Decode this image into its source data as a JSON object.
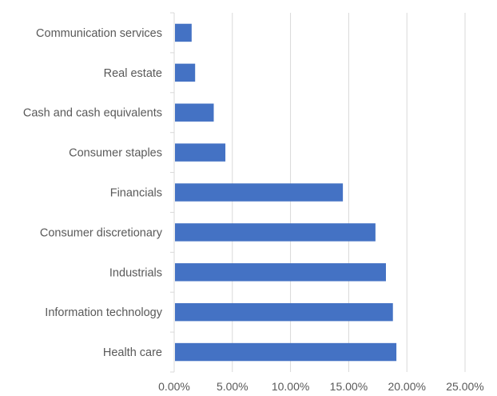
{
  "chart_data": {
    "type": "bar",
    "orientation": "horizontal",
    "categories": [
      "Communication services",
      "Real estate",
      "Cash and cash equivalents",
      "Consumer staples",
      "Financials",
      "Consumer discretionary",
      "Industrials",
      "Information technology",
      "Health care"
    ],
    "values": [
      1.5,
      1.8,
      3.4,
      4.4,
      14.5,
      17.3,
      18.2,
      18.8,
      19.1
    ],
    "xlim": [
      0,
      25
    ],
    "xticks": [
      "0.00%",
      "5.00%",
      "10.00%",
      "15.00%",
      "20.00%",
      "25.00%"
    ],
    "grid": true,
    "bar_color": "#4472c4",
    "grid_color": "#d9d9d9",
    "title": "",
    "xlabel": "",
    "ylabel": ""
  }
}
